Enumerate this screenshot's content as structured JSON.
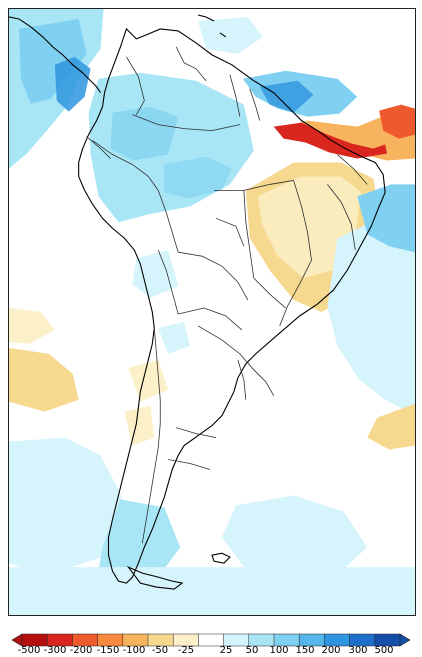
{
  "colorbar": {
    "labels": [
      "-500",
      "-300",
      "-200",
      "-150",
      "-100",
      "-50",
      "-25",
      "25",
      "50",
      "100",
      "150",
      "200",
      "300",
      "500"
    ],
    "colors": [
      "#b40f0f",
      "#d9261f",
      "#ee5a2d",
      "#f78a3d",
      "#f7b35d",
      "#f6d98f",
      "#fbf0c8",
      "#ffffff",
      "#d6f4fb",
      "#a8e6f6",
      "#7fd0f1",
      "#56b6ea",
      "#2f95de",
      "#1f6fc9",
      "#144ea8"
    ]
  },
  "map": {
    "colors": {
      "coast": "#000000",
      "border": "#2f2f2f",
      "light_blue": "#d6f4fb",
      "mid_blue": "#a8e6f6",
      "blue": "#7fd0f1",
      "deep_blue": "#2f95de",
      "light_yellow": "#fbf0c8",
      "yellow": "#f6d98f",
      "orange": "#f7b35d",
      "deep_orange": "#ee5a2d",
      "red": "#d9261f"
    }
  }
}
